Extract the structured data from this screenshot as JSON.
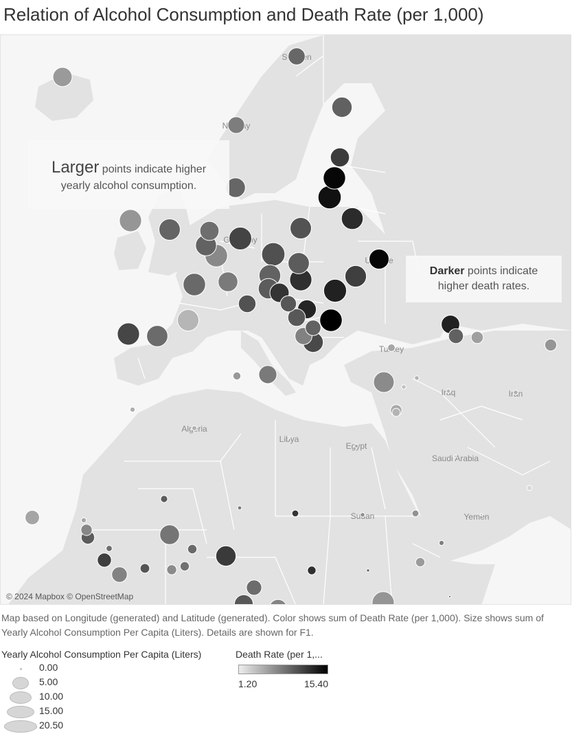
{
  "title": "Relation of Alcohol Consumption and Death Rate (per 1,000)",
  "map": {
    "attribution": "© 2024 Mapbox © OpenStreetMap",
    "labels": [
      "Sweden",
      "Norway",
      "Germany",
      "Ukraine",
      "Turkey",
      "Iraq",
      "Iran",
      "Algeria",
      "Libya",
      "Egypt",
      "Saudi Arabia",
      "Sudan",
      "Yemen"
    ],
    "colors": {
      "water": "#f6f6f6",
      "land": "#e2e2e2",
      "border": "#ffffff",
      "point_stroke": "#ffffff"
    },
    "death_rate_range": [
      1.2,
      15.4
    ],
    "consumption_range": [
      0.0,
      20.5
    ],
    "points": [
      {
        "name": "Iceland",
        "consumption": 9.1,
        "death_rate": 6.2
      },
      {
        "name": "Sweden",
        "consumption": 7.2,
        "death_rate": 9.2
      },
      {
        "name": "Finland",
        "consumption": 10.1,
        "death_rate": 9.6
      },
      {
        "name": "Norway",
        "consumption": 6.8,
        "death_rate": 7.9
      },
      {
        "name": "Denmark",
        "consumption": 9.5,
        "death_rate": 9.3
      },
      {
        "name": "Estonia",
        "consumption": 8.9,
        "death_rate": 11.8
      },
      {
        "name": "Latvia",
        "consumption": 12.2,
        "death_rate": 15.0
      },
      {
        "name": "Lithuania",
        "consumption": 13.1,
        "death_rate": 14.4
      },
      {
        "name": "Belarus",
        "consumption": 11.6,
        "death_rate": 12.8
      },
      {
        "name": "Ireland",
        "consumption": 12.0,
        "death_rate": 6.4
      },
      {
        "name": "United Kingdom",
        "consumption": 11.2,
        "death_rate": 9.4
      },
      {
        "name": "Netherlands",
        "consumption": 9.0,
        "death_rate": 8.8
      },
      {
        "name": "Belgium",
        "consumption": 10.8,
        "death_rate": 9.5
      },
      {
        "name": "Germany",
        "consumption": 12.6,
        "death_rate": 11.3
      },
      {
        "name": "Luxembourg",
        "consumption": 12.3,
        "death_rate": 7.2
      },
      {
        "name": "Poland",
        "consumption": 11.1,
        "death_rate": 10.4
      },
      {
        "name": "Czechia",
        "consumption": 13.3,
        "death_rate": 10.6
      },
      {
        "name": "Slovakia",
        "consumption": 11.0,
        "death_rate": 9.9
      },
      {
        "name": "Austria",
        "consumption": 11.4,
        "death_rate": 9.5
      },
      {
        "name": "Switzerland",
        "consumption": 9.5,
        "death_rate": 8.1
      },
      {
        "name": "France",
        "consumption": 12.3,
        "death_rate": 9.1
      },
      {
        "name": "Hungary",
        "consumption": 12.0,
        "death_rate": 12.6
      },
      {
        "name": "Slovenia",
        "consumption": 10.2,
        "death_rate": 9.9
      },
      {
        "name": "Croatia",
        "consumption": 9.1,
        "death_rate": 12.3
      },
      {
        "name": "Serbia",
        "consumption": 8.6,
        "death_rate": 13.2
      },
      {
        "name": "Bosnia and Herzegovina",
        "consumption": 6.4,
        "death_rate": 10.2
      },
      {
        "name": "Montenegro",
        "consumption": 7.6,
        "death_rate": 10.1
      },
      {
        "name": "North Macedonia",
        "consumption": 5.9,
        "death_rate": 9.5
      },
      {
        "name": "Albania",
        "consumption": 7.2,
        "death_rate": 7.7
      },
      {
        "name": "Greece",
        "consumption": 10.0,
        "death_rate": 11.0
      },
      {
        "name": "Bulgaria",
        "consumption": 12.4,
        "death_rate": 15.4
      },
      {
        "name": "Romania",
        "consumption": 12.8,
        "death_rate": 13.4
      },
      {
        "name": "Moldova",
        "consumption": 11.3,
        "death_rate": 11.6
      },
      {
        "name": "Ukraine",
        "consumption": 9.8,
        "death_rate": 15.0
      },
      {
        "name": "Italy",
        "consumption": 7.5,
        "death_rate": 10.5
      },
      {
        "name": "Spain",
        "consumption": 11.0,
        "death_rate": 9.0
      },
      {
        "name": "Portugal",
        "consumption": 12.1,
        "death_rate": 11.2
      },
      {
        "name": "Andorra",
        "consumption": 11.3,
        "death_rate": 4.5
      },
      {
        "name": "Malta",
        "consumption": 8.0,
        "death_rate": 8.1
      },
      {
        "name": "Tunisia",
        "consumption": 1.5,
        "death_rate": 6.3
      },
      {
        "name": "Morocco",
        "consumption": 0.6,
        "death_rate": 5.0
      },
      {
        "name": "Algeria",
        "consumption": 0.6,
        "death_rate": 4.7
      },
      {
        "name": "Turkey",
        "consumption": 1.4,
        "death_rate": 5.4
      },
      {
        "name": "Cyprus",
        "consumption": 10.5,
        "death_rate": 7.1
      },
      {
        "name": "Lebanon",
        "consumption": 1.6,
        "death_rate": 4.6
      },
      {
        "name": "Israel",
        "consumption": 3.2,
        "death_rate": 5.3
      },
      {
        "name": "Syria",
        "consumption": 0.5,
        "death_rate": 4.7
      },
      {
        "name": "Jordan",
        "consumption": 0.5,
        "death_rate": 3.8
      },
      {
        "name": "Iraq",
        "consumption": 0.4,
        "death_rate": 4.6
      },
      {
        "name": "Iran",
        "consumption": 0.5,
        "death_rate": 4.9
      },
      {
        "name": "Georgia",
        "consumption": 8.4,
        "death_rate": 13.4
      },
      {
        "name": "Armenia",
        "consumption": 5.4,
        "death_rate": 9.6
      },
      {
        "name": "Azerbaijan",
        "consumption": 3.6,
        "death_rate": 5.9
      },
      {
        "name": "Turkmenistan",
        "consumption": 3.4,
        "death_rate": 6.5
      },
      {
        "name": "Egypt",
        "consumption": 0.3,
        "death_rate": 5.6
      },
      {
        "name": "Libya",
        "consumption": 0.1,
        "death_rate": 4.2
      },
      {
        "name": "Saudi Arabia",
        "consumption": 0.2,
        "death_rate": 3.3
      },
      {
        "name": "Yemen",
        "consumption": 0.1,
        "death_rate": 5.8
      },
      {
        "name": "Oman",
        "consumption": 0.7,
        "death_rate": 2.4
      },
      {
        "name": "Sudan",
        "consumption": 0.5,
        "death_rate": 6.7
      },
      {
        "name": "Eritrea",
        "consumption": 1.1,
        "death_rate": 6.7
      },
      {
        "name": "Djibouti",
        "consumption": 0.6,
        "death_rate": 7.8
      },
      {
        "name": "Ethiopia",
        "consumption": 2.1,
        "death_rate": 6.1
      },
      {
        "name": "Cabo Verde",
        "consumption": 5.0,
        "death_rate": 5.5
      },
      {
        "name": "Senegal",
        "consumption": 0.6,
        "death_rate": 5.4
      },
      {
        "name": "Gambia",
        "consumption": 3.1,
        "death_rate": 7.3
      },
      {
        "name": "Guinea-Bissau",
        "consumption": 4.4,
        "death_rate": 9.9
      },
      {
        "name": "Guinea",
        "consumption": 0.9,
        "death_rate": 8.8
      },
      {
        "name": "Sierra Leone",
        "consumption": 4.8,
        "death_rate": 11.6
      },
      {
        "name": "Liberia",
        "consumption": 5.9,
        "death_rate": 7.6
      },
      {
        "name": "Mali",
        "consumption": 1.2,
        "death_rate": 9.9
      },
      {
        "name": "Burkina Faso",
        "consumption": 9.5,
        "death_rate": 8.4
      },
      {
        "name": "Cote d'Ivoire",
        "consumption": 2.2,
        "death_rate": 10.3
      },
      {
        "name": "Ghana",
        "consumption": 2.4,
        "death_rate": 7.1
      },
      {
        "name": "Togo",
        "consumption": 2.1,
        "death_rate": 8.6
      },
      {
        "name": "Benin",
        "consumption": 2.1,
        "death_rate": 9.1
      },
      {
        "name": "Niger",
        "consumption": 0.4,
        "death_rate": 8.0
      },
      {
        "name": "Nigeria",
        "consumption": 10.0,
        "death_rate": 11.9
      },
      {
        "name": "Chad",
        "consumption": 1.1,
        "death_rate": 12.3
      },
      {
        "name": "Central African Republic",
        "consumption": 1.8,
        "death_rate": 12.6
      },
      {
        "name": "Cameroon",
        "consumption": 5.7,
        "death_rate": 8.9
      },
      {
        "name": "Gabon",
        "consumption": 8.6,
        "death_rate": 10.1
      },
      {
        "name": "Congo",
        "consumption": 7.6,
        "death_rate": 7.5
      },
      {
        "name": "Democratic Republic of the Congo",
        "consumption": 12.0,
        "death_rate": 6.5
      },
      {
        "name": "South Sudan",
        "consumption": 0.2,
        "death_rate": 10.1
      },
      {
        "name": "Somalia",
        "consumption": 0.1,
        "death_rate": 10.9
      }
    ]
  },
  "callouts": {
    "size": {
      "big": "Larger",
      "line1_rest": " points indicate higher",
      "line2": "yearly alcohol consumption."
    },
    "color": {
      "bold": "Darker",
      "line1_rest": " points indicate",
      "line2": "higher death rates."
    }
  },
  "caption": "Map based on Longitude (generated) and Latitude (generated).  Color shows sum of Death Rate (per 1,000).  Size shows sum of Yearly Alcohol Consumption Per Capita (Liters).  Details are shown for F1.",
  "legend_size": {
    "title": "Yearly Alcohol Consumption Per Capita (Liters)",
    "items": [
      {
        "label": "0.00",
        "value": 0.0
      },
      {
        "label": "5.00",
        "value": 5.0
      },
      {
        "label": "10.00",
        "value": 10.0
      },
      {
        "label": "15.00",
        "value": 15.0
      },
      {
        "label": "20.50",
        "value": 20.5
      }
    ]
  },
  "legend_color": {
    "title": "Death Rate (per 1,...",
    "min_label": "1.20",
    "max_label": "15.40"
  }
}
